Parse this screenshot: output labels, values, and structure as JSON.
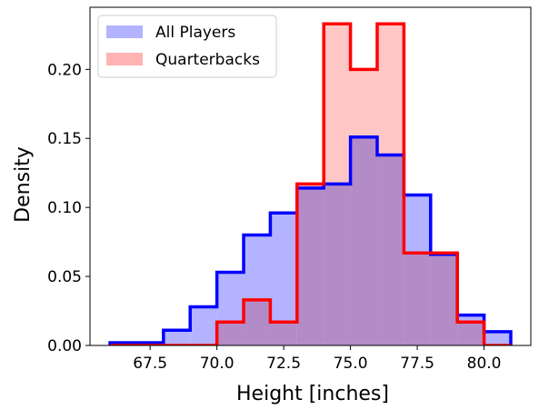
{
  "chart_data": {
    "type": "histogram",
    "xlabel": "Height [inches]",
    "ylabel": "Density",
    "xlim": [
      65.25,
      81.75
    ],
    "ylim": [
      0,
      0.245
    ],
    "x_ticks": [
      67.5,
      70.0,
      72.5,
      75.0,
      77.5,
      80.0
    ],
    "x_tick_labels": [
      "67.5",
      "70.0",
      "72.5",
      "75.0",
      "77.5",
      "80.0"
    ],
    "y_ticks": [
      0.0,
      0.05,
      0.1,
      0.15,
      0.2
    ],
    "y_tick_labels": [
      "0.00",
      "0.05",
      "0.10",
      "0.15",
      "0.20"
    ],
    "legend_position": "top-left",
    "bin_edges": [
      66,
      67,
      68,
      69,
      70,
      71,
      72,
      73,
      74,
      75,
      76,
      77,
      78,
      79,
      80,
      81
    ],
    "series": [
      {
        "name": "All Players",
        "fill_color": "#b3b3ff",
        "line_color": "#0000ff",
        "values": [
          0.002,
          0.002,
          0.011,
          0.028,
          0.053,
          0.08,
          0.096,
          0.114,
          0.117,
          0.151,
          0.138,
          0.109,
          0.066,
          0.022,
          0.01
        ]
      },
      {
        "name": "Quarterbacks",
        "fill_color": "#ffb3b3",
        "line_color": "#ff0000",
        "values": [
          0.0,
          0.0,
          0.0,
          0.0,
          0.017,
          0.033,
          0.017,
          0.117,
          0.233,
          0.2,
          0.233,
          0.067,
          0.067,
          0.017,
          0.0
        ]
      }
    ]
  }
}
